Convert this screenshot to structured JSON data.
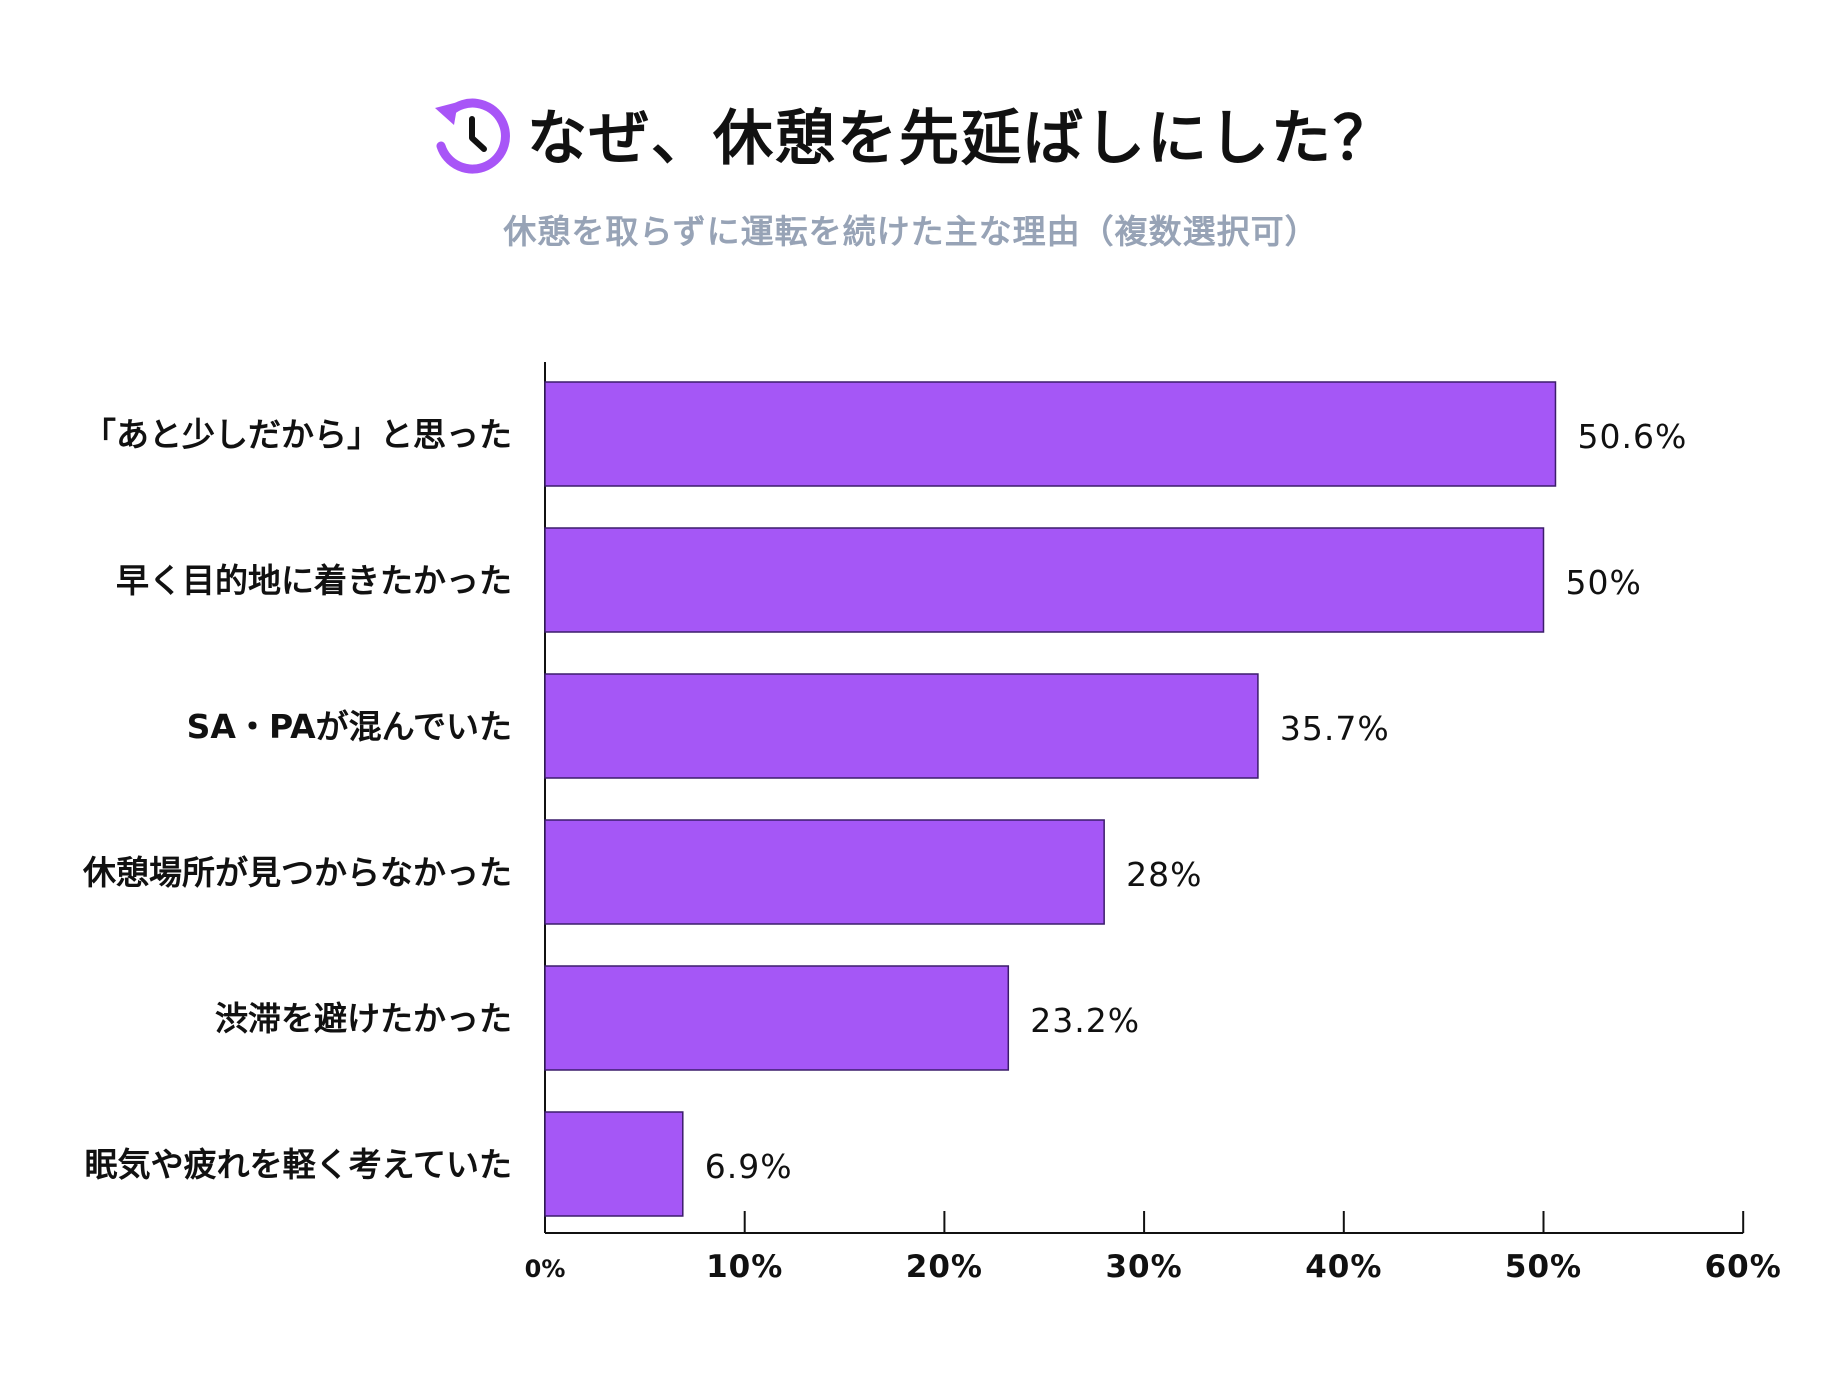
{
  "header": {
    "title": "なぜ、休憩を先延ばしにした？",
    "subtitle": "休憩を取らずに運転を続けた主な理由（複数選択可）",
    "icon": "clock-rewind-icon"
  },
  "colors": {
    "accent": "#a855f7",
    "bar_fill": "#a557f6",
    "bar_stroke": "#3c1d6b",
    "subtitle": "#97a3b6",
    "text": "#111111"
  },
  "chart_data": {
    "type": "bar",
    "orientation": "horizontal",
    "categories": [
      "「あと少しだから」と思った",
      "早く目的地に着きたかった",
      "SA・PAが混んでいた",
      "休憩場所が見つからなかった",
      "渋滞を避けたかった",
      "眠気や疲れを軽く考えていた"
    ],
    "values": [
      50.6,
      50,
      35.7,
      28,
      23.2,
      6.9
    ],
    "value_labels": [
      "50.6%",
      "50%",
      "35.7%",
      "28%",
      "23.2%",
      "6.9%"
    ],
    "xlim": [
      0,
      60
    ],
    "xticks": [
      0,
      10,
      20,
      30,
      40,
      50,
      60
    ],
    "xtick_labels": [
      "0%",
      "10%",
      "20%",
      "30%",
      "40%",
      "50%",
      "60%"
    ],
    "grid": false,
    "legend": "none"
  }
}
